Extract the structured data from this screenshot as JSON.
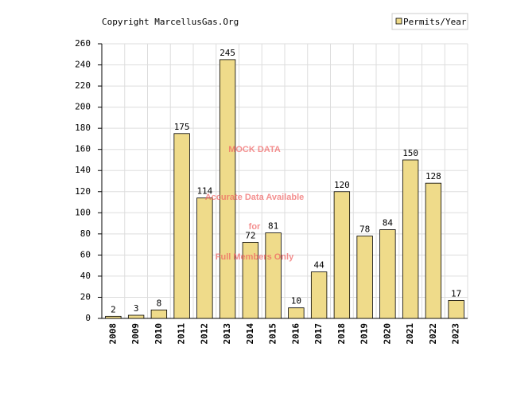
{
  "chart_data": {
    "type": "bar",
    "copyright": "Copyright MarcellusGas.Org",
    "categories": [
      "2008",
      "2009",
      "2010",
      "2011",
      "2012",
      "2013",
      "2014",
      "2015",
      "2016",
      "2017",
      "2018",
      "2019",
      "2020",
      "2021",
      "2022",
      "2023"
    ],
    "series": [
      {
        "name": "Permits/Year",
        "color": "#efdb8a",
        "values": [
          2,
          3,
          8,
          175,
          114,
          245,
          72,
          81,
          10,
          44,
          120,
          78,
          84,
          150,
          128,
          17
        ]
      }
    ],
    "ylim": [
      0,
      260
    ],
    "yticks": [
      0,
      20,
      40,
      60,
      80,
      100,
      120,
      140,
      160,
      180,
      200,
      220,
      240,
      260
    ],
    "grid": true,
    "watermark": [
      "MOCK DATA",
      "Accurate Data Available",
      "for",
      "Full Members Only"
    ]
  }
}
